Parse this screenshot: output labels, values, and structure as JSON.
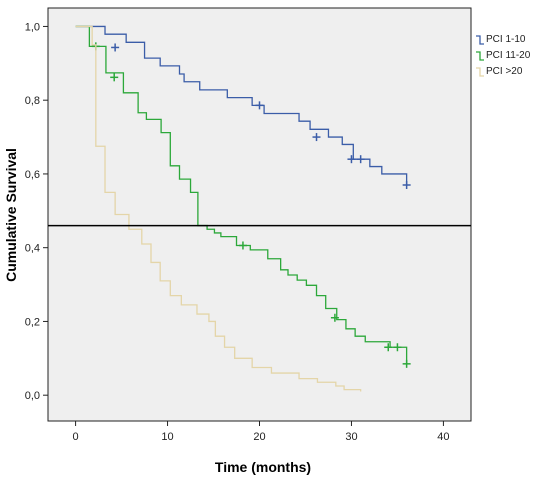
{
  "chart_data": {
    "type": "line",
    "subtype": "kaplan-meier-step",
    "title": "",
    "xlabel": "Time (months)",
    "ylabel": "Cumulative Survival",
    "xlim": [
      -3,
      43
    ],
    "ylim": [
      -0.07,
      1.05
    ],
    "xticks": [
      0,
      10,
      20,
      30,
      40
    ],
    "xtick_labels": [
      "0",
      "10",
      "20",
      "30",
      "40"
    ],
    "yticks": [
      0.0,
      0.2,
      0.4,
      0.6,
      0.8,
      1.0
    ],
    "ytick_labels": [
      "0,0",
      "0,2",
      "0,4",
      "0,6",
      "0,8",
      "1,0"
    ],
    "grid": false,
    "background": "#efefef",
    "reference_line": {
      "y": 0.46,
      "color": "#000000"
    },
    "legend": {
      "position": "top-right"
    },
    "series": [
      {
        "name": "PCI 1-10",
        "color": "#3b5da8",
        "steps": [
          [
            0,
            1.0
          ],
          [
            3.2,
            0.979
          ],
          [
            5.5,
            0.957
          ],
          [
            7.5,
            0.914
          ],
          [
            9.2,
            0.893
          ],
          [
            11.3,
            0.871
          ],
          [
            11.8,
            0.85
          ],
          [
            13.5,
            0.828
          ],
          [
            16.5,
            0.807
          ],
          [
            19.2,
            0.786
          ],
          [
            20.5,
            0.764
          ],
          [
            24.3,
            0.743
          ],
          [
            25.5,
            0.721
          ],
          [
            27.5,
            0.7
          ],
          [
            29,
            0.68
          ],
          [
            30.2,
            0.64
          ],
          [
            32,
            0.62
          ],
          [
            33.3,
            0.6
          ],
          [
            36,
            0.57
          ]
        ],
        "censored": [
          [
            4.3,
            0.943
          ],
          [
            20,
            0.786
          ],
          [
            26.2,
            0.7
          ],
          [
            30,
            0.64
          ],
          [
            31,
            0.64
          ],
          [
            36,
            0.57
          ]
        ]
      },
      {
        "name": "PCI 11-20",
        "color": "#2ca83a",
        "steps": [
          [
            0,
            1.0
          ],
          [
            1.5,
            0.946
          ],
          [
            3.3,
            0.874
          ],
          [
            5.2,
            0.82
          ],
          [
            6.8,
            0.766
          ],
          [
            7.7,
            0.748
          ],
          [
            9.3,
            0.712
          ],
          [
            10.3,
            0.622
          ],
          [
            11.3,
            0.586
          ],
          [
            12.5,
            0.55
          ],
          [
            13.3,
            0.46
          ],
          [
            14.3,
            0.45
          ],
          [
            15.1,
            0.44
          ],
          [
            15.8,
            0.43
          ],
          [
            17.5,
            0.406
          ],
          [
            19,
            0.394
          ],
          [
            20.9,
            0.37
          ],
          [
            22.3,
            0.34
          ],
          [
            23.1,
            0.326
          ],
          [
            24.1,
            0.312
          ],
          [
            25.1,
            0.298
          ],
          [
            26.2,
            0.27
          ],
          [
            27.2,
            0.235
          ],
          [
            28.4,
            0.205
          ],
          [
            29.4,
            0.18
          ],
          [
            30.4,
            0.16
          ],
          [
            31.5,
            0.145
          ],
          [
            34.2,
            0.13
          ],
          [
            36,
            0.085
          ]
        ],
        "censored": [
          [
            2.2,
            0.946
          ],
          [
            4.2,
            0.862
          ],
          [
            18.2,
            0.406
          ],
          [
            28.2,
            0.21
          ],
          [
            34,
            0.13
          ],
          [
            35,
            0.13
          ],
          [
            36,
            0.085
          ]
        ]
      },
      {
        "name": "PCI >20",
        "color": "#e4d5a8",
        "steps": [
          [
            0,
            1.0
          ],
          [
            1.8,
            0.95
          ],
          [
            2.2,
            0.675
          ],
          [
            3.2,
            0.55
          ],
          [
            4.3,
            0.49
          ],
          [
            5.8,
            0.45
          ],
          [
            7.2,
            0.41
          ],
          [
            8.2,
            0.36
          ],
          [
            9.2,
            0.31
          ],
          [
            10.3,
            0.27
          ],
          [
            11.5,
            0.245
          ],
          [
            13.2,
            0.22
          ],
          [
            14.5,
            0.2
          ],
          [
            15.2,
            0.16
          ],
          [
            16.2,
            0.13
          ],
          [
            17.3,
            0.1
          ],
          [
            19.2,
            0.075
          ],
          [
            21.3,
            0.06
          ],
          [
            24.3,
            0.045
          ],
          [
            26.3,
            0.035
          ],
          [
            28.3,
            0.025
          ],
          [
            29.2,
            0.015
          ],
          [
            31,
            0.01
          ]
        ],
        "censored": []
      }
    ]
  }
}
